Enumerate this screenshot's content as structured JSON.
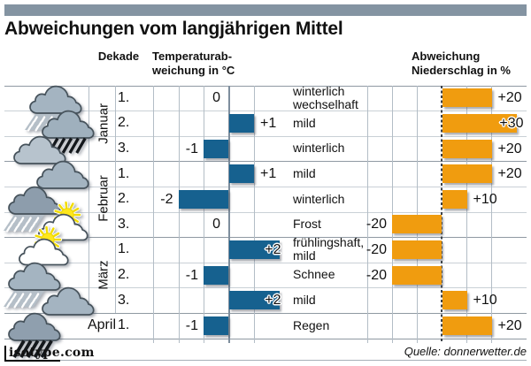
{
  "topbar": {
    "color": "#8494a2"
  },
  "title": "Abweichungen vom langjährigen Mittel",
  "headers": {
    "dekade": "Dekade",
    "temperature": "Temperaturab-\nweichung in °C",
    "precipitation": "Abweichung\nNiederschlag in %"
  },
  "months": [
    {
      "name": "Januar",
      "span": 3,
      "vertical": true
    },
    {
      "name": "Februar",
      "span": 3,
      "vertical": true
    },
    {
      "name": "März",
      "span": 3,
      "vertical": true
    },
    {
      "name": "April",
      "span": 1,
      "vertical": false
    }
  ],
  "rows": [
    {
      "decade": "1.",
      "icon": "snow-shower-cloud",
      "temp": 0,
      "temp_label": "0",
      "condition": "winterlich\nwechselhaft",
      "precip": 20,
      "precip_label": "+20"
    },
    {
      "decade": "2.",
      "icon": "rain-cloud",
      "temp": 1,
      "temp_label": "+1",
      "condition": "mild",
      "precip": 30,
      "precip_label": "+30"
    },
    {
      "decade": "3.",
      "icon": "cloud-light",
      "temp": -1,
      "temp_label": "-1",
      "condition": "winterlich",
      "precip": 20,
      "precip_label": "+20"
    },
    {
      "decade": "1.",
      "icon": "cloud",
      "temp": 1,
      "temp_label": "+1",
      "condition": "mild",
      "precip": 20,
      "precip_label": "+20"
    },
    {
      "decade": "2.",
      "icon": "snow-shower-dark-cloud",
      "temp": -2,
      "temp_label": "-2",
      "condition": "winterlich",
      "precip": 10,
      "precip_label": "+10"
    },
    {
      "decade": "3.",
      "icon": "sun-behind-cloud",
      "temp": 0,
      "temp_label": "0",
      "condition": "Frost",
      "precip": -20,
      "precip_label": "-20"
    },
    {
      "decade": "1.",
      "icon": "sun-behind-cloud",
      "temp": 2,
      "temp_label": "+2",
      "condition": "frühlingshaft,\nmild",
      "precip": -20,
      "precip_label": "-20"
    },
    {
      "decade": "2.",
      "icon": "snow-shower-cloud",
      "temp": -1,
      "temp_label": "-1",
      "condition": "Schnee",
      "precip": -20,
      "precip_label": "-20"
    },
    {
      "decade": "3.",
      "icon": "cloud",
      "temp": 2,
      "temp_label": "+2",
      "condition": "mild",
      "precip": 10,
      "precip_label": "+10"
    },
    {
      "decade": "1.",
      "icon": "heavy-rain-cloud",
      "temp": -1,
      "temp_label": "-1",
      "condition": "Regen",
      "precip": 20,
      "precip_label": "+20"
    }
  ],
  "colors": {
    "temp_bar": "#16618f",
    "precip_bar": "#f09c0f",
    "topbar": "#8494a2"
  },
  "footer": {
    "logo_name": "isotype",
    "logo_tld": ".com",
    "source": "Quelle: donnerwetter.de"
  },
  "chart_data": {
    "type": "bar",
    "orientation": "horizontal",
    "title": "Abweichungen vom langjährigen Mittel",
    "categories": [
      "Januar 1.",
      "Januar 2.",
      "Januar 3.",
      "Februar 1.",
      "Februar 2.",
      "Februar 3.",
      "März 1.",
      "März 2.",
      "März 3.",
      "April 1."
    ],
    "series": [
      {
        "name": "Temperaturabweichung in °C",
        "values": [
          0,
          1,
          -1,
          1,
          -2,
          0,
          2,
          -1,
          2,
          -1
        ],
        "xlim": [
          -3,
          2
        ],
        "color": "#16618f",
        "unit": "°C"
      },
      {
        "name": "Abweichung Niederschlag in %",
        "values": [
          20,
          30,
          20,
          20,
          10,
          -20,
          -20,
          -20,
          10,
          20
        ],
        "xlim": [
          -30,
          30
        ],
        "color": "#f09c0f",
        "unit": "%"
      }
    ],
    "annotations": [
      "winterlich wechselhaft",
      "mild",
      "winterlich",
      "mild",
      "winterlich",
      "Frost",
      "frühlingshaft, mild",
      "Schnee",
      "mild",
      "Regen"
    ],
    "grid": true,
    "legend_position": "none",
    "source": "Quelle: donnerwetter.de"
  }
}
